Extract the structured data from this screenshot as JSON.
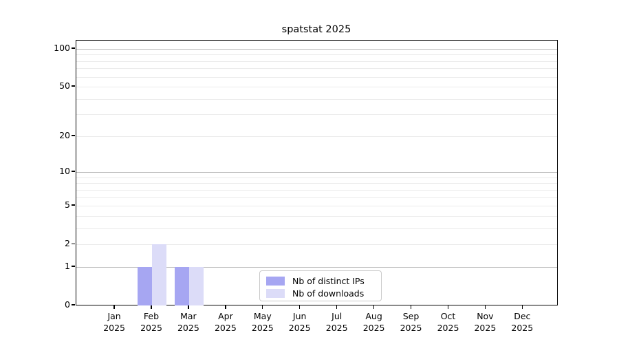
{
  "chart_data": {
    "type": "bar",
    "title": "spatstat 2025",
    "year": "2025",
    "months": [
      "Jan",
      "Feb",
      "Mar",
      "Apr",
      "May",
      "Jun",
      "Jul",
      "Aug",
      "Sep",
      "Oct",
      "Nov",
      "Dec"
    ],
    "categories": [
      "Jan 2025",
      "Feb 2025",
      "Mar 2025",
      "Apr 2025",
      "May 2025",
      "Jun 2025",
      "Jul 2025",
      "Aug 2025",
      "Sep 2025",
      "Oct 2025",
      "Nov 2025",
      "Dec 2025"
    ],
    "series": [
      {
        "name": "Nb of distinct IPs",
        "color": "#a6a6f2",
        "values": [
          0,
          1,
          1,
          0,
          0,
          0,
          0,
          0,
          0,
          0,
          0,
          0
        ]
      },
      {
        "name": "Nb of downloads",
        "color": "#dcdcf8",
        "values": [
          0,
          2,
          1,
          0,
          0,
          0,
          0,
          0,
          0,
          0,
          0,
          0
        ]
      }
    ],
    "yscale": "log1p",
    "ylabel": "",
    "xlabel": "",
    "yticks": [
      "100",
      "50",
      "20",
      "10",
      "5",
      "2",
      "1",
      "0"
    ],
    "ylim": [
      0,
      116
    ],
    "grid": {
      "major_values": [
        100,
        10,
        1
      ],
      "minor_values": [
        90,
        80,
        70,
        60,
        50,
        40,
        30,
        20,
        9,
        8,
        7,
        6,
        5,
        4,
        3,
        2
      ],
      "major_color": "#b5b5b5",
      "minor_color": "#ebebeb"
    },
    "legend": {
      "position": "lower center"
    },
    "axis_color": "#000000",
    "background_color": "#ffffff"
  }
}
